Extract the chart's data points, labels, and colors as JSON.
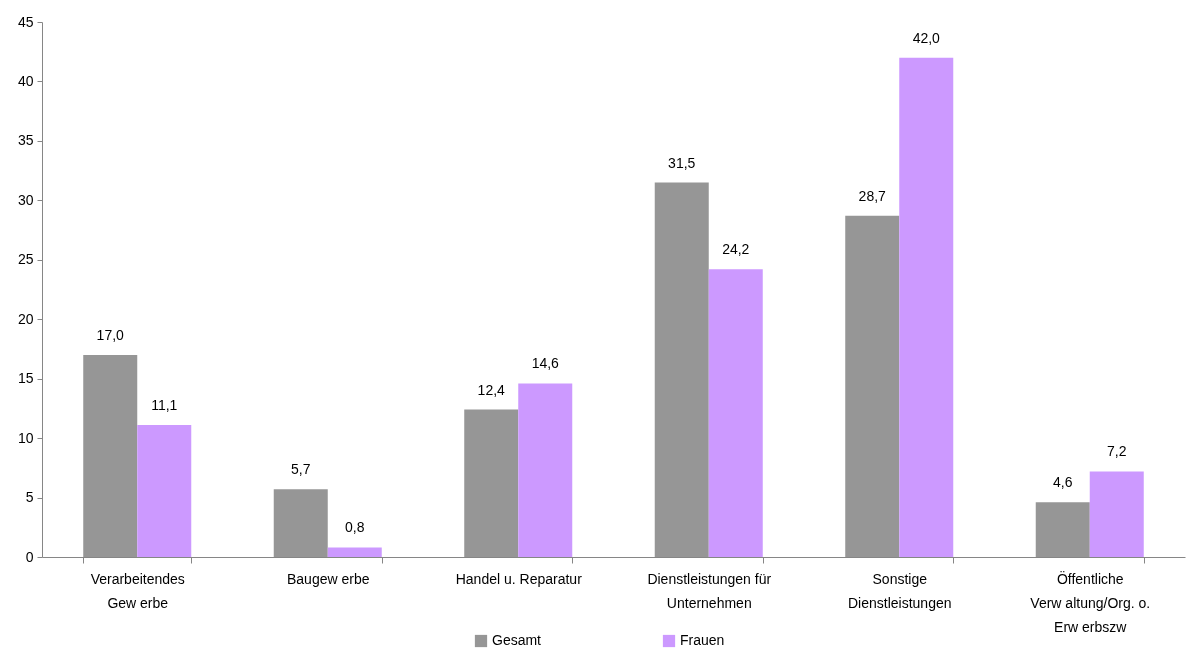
{
  "chart_data": {
    "type": "bar",
    "categories": [
      "Verarbeitendes\nGew erbe",
      "Baugew erbe",
      "Handel u. Reparatur",
      "Dienstleistungen für\nUnternehmen",
      "Sonstige\nDienstleistungen",
      "Öffentliche\nVerw altung/Org. o.\nErw erbszw"
    ],
    "series": [
      {
        "name": "Gesamt",
        "color": "#969696",
        "values": [
          17.0,
          5.7,
          12.4,
          31.5,
          28.7,
          4.6
        ],
        "value_labels": [
          "17,0",
          "5,7",
          "12,4",
          "31,5",
          "28,7",
          "4,6"
        ]
      },
      {
        "name": "Frauen",
        "color": "#cc99ff",
        "values": [
          11.1,
          0.8,
          14.6,
          24.2,
          42.0,
          7.2
        ],
        "value_labels": [
          "11,1",
          "0,8",
          "14,6",
          "24,2",
          "42,0",
          "7,2"
        ]
      }
    ],
    "ylim": [
      0,
      45
    ],
    "yticks": [
      0,
      5,
      10,
      15,
      20,
      25,
      30,
      35,
      40,
      45
    ],
    "legend": "bottom"
  }
}
